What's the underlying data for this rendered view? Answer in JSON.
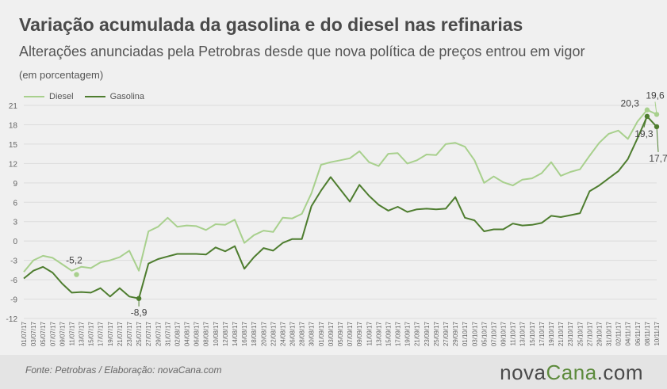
{
  "title": "Variação acumulada da gasolina e do diesel nas refinarias",
  "subtitle": "Alterações anunciadas pela Petrobras desde que nova política de preços entrou em vigor",
  "unit_note": "(em porcentagem)",
  "source": "Fonte:  Petrobras  / Elaboração:  novaCana.com",
  "logo": {
    "prefix": "nova",
    "brand": "Cana",
    "suffix": ".com"
  },
  "colors": {
    "diesel": "#a8d08d",
    "gasolina": "#4e7d2f",
    "grid": "#dcdcdc",
    "axis_text": "#666666"
  },
  "chart_data": {
    "type": "line",
    "title": "Variação acumulada da gasolina e do diesel nas refinarias",
    "ylabel": "(em porcentagem)",
    "ylim": [
      -12,
      21
    ],
    "yticks": [
      -12,
      -9,
      -6,
      -3,
      0,
      3,
      6,
      9,
      12,
      15,
      18,
      21
    ],
    "grid": true,
    "legend_position": "top-left",
    "x": [
      "01/07/17",
      "03/07/17",
      "05/07/17",
      "07/07/17",
      "09/07/17",
      "11/07/17",
      "13/07/17",
      "15/07/17",
      "17/07/17",
      "19/07/17",
      "21/07/17",
      "23/07/17",
      "25/07/17",
      "27/07/17",
      "29/07/17",
      "31/07/17",
      "02/08/17",
      "04/08/17",
      "06/08/17",
      "08/08/17",
      "10/08/17",
      "12/08/17",
      "14/08/17",
      "16/08/17",
      "18/08/17",
      "20/08/17",
      "22/08/17",
      "24/08/17",
      "26/08/17",
      "28/08/17",
      "30/08/17",
      "01/09/17",
      "03/09/17",
      "05/09/17",
      "07/09/17",
      "09/09/17",
      "11/09/17",
      "13/09/17",
      "15/09/17",
      "17/09/17",
      "19/09/17",
      "21/09/17",
      "23/09/17",
      "25/09/17",
      "27/09/17",
      "29/09/17",
      "01/10/17",
      "03/10/17",
      "05/10/17",
      "07/10/17",
      "09/10/17",
      "11/10/17",
      "13/10/17",
      "15/10/17",
      "17/10/17",
      "19/10/17",
      "21/10/17",
      "23/10/17",
      "25/10/17",
      "27/10/17",
      "29/10/17",
      "31/10/17",
      "02/11/17",
      "04/11/17",
      "06/11/17",
      "08/11/17",
      "10/11/17"
    ],
    "series": [
      {
        "name": "Diesel",
        "values": [
          -4.8,
          -3,
          -2.3,
          -2.6,
          -3.6,
          -4.6,
          -4,
          -4.2,
          -3.3,
          -3,
          -2.5,
          -1.5,
          -4.6,
          1.5,
          2.2,
          3.6,
          2.2,
          2.4,
          2.3,
          1.7,
          2.6,
          2.5,
          3.3,
          -0.3,
          0.9,
          1.6,
          1.4,
          3.6,
          3.5,
          4.2,
          7.4,
          11.8,
          12.2,
          12.5,
          12.8,
          13.9,
          12.2,
          11.6,
          13.5,
          13.6,
          12,
          12.5,
          13.4,
          13.3,
          15,
          15.2,
          14.6,
          12.5,
          9,
          10,
          9.1,
          8.6,
          9.5,
          9.7,
          10.5,
          12.2,
          10.1,
          10.7,
          11.1,
          13.2,
          15.2,
          16.6,
          17.1,
          15.8,
          18.5,
          20.3,
          19.6
        ]
      },
      {
        "name": "Gasolina",
        "values": [
          -5.8,
          -4.6,
          -4,
          -4.9,
          -6.6,
          -8,
          -7.9,
          -8,
          -7.3,
          -8.6,
          -7.3,
          -8.6,
          -8.9,
          -3.5,
          -2.8,
          -2.4,
          -2,
          -2,
          -2,
          -2.1,
          -1,
          -1.6,
          -0.8,
          -4.3,
          -2.5,
          -1.1,
          -1.5,
          -0.3,
          0.3,
          0.3,
          5.4,
          7.8,
          9.9,
          8,
          6.1,
          8.7,
          7,
          5.6,
          4.7,
          5.3,
          4.5,
          4.9,
          5,
          4.9,
          5,
          6.8,
          3.6,
          3.2,
          1.5,
          1.8,
          1.8,
          2.7,
          2.4,
          2.5,
          2.8,
          3.9,
          3.7,
          4,
          4.3,
          7.7,
          8.6,
          9.7,
          10.8,
          12.7,
          15.9,
          19.3,
          17.7
        ]
      }
    ],
    "annotations": [
      {
        "text": "-5,2",
        "series": "Diesel",
        "x": "12/07/17",
        "value": -5.2
      },
      {
        "text": "-8,9",
        "series": "Gasolina",
        "x": "25/07/17",
        "value": -8.9
      },
      {
        "text": "20,3",
        "series": "Diesel",
        "x": "08/11/17",
        "value": 20.3
      },
      {
        "text": "19,6",
        "series": "Diesel",
        "x": "10/11/17",
        "value": 19.6
      },
      {
        "text": "19,3",
        "series": "Gasolina",
        "x": "08/11/17",
        "value": 19.3
      },
      {
        "text": "17,7",
        "series": "Gasolina",
        "x": "10/11/17",
        "value": 17.7
      }
    ]
  }
}
